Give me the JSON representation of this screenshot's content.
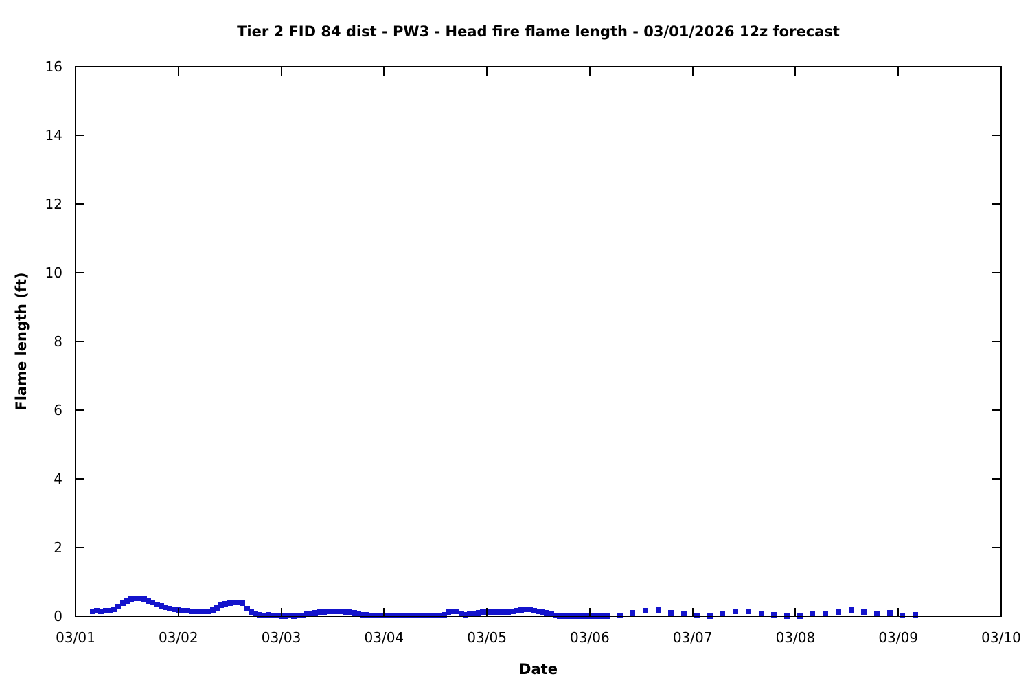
{
  "chart_data": {
    "type": "scatter",
    "title": "Tier 2 FID 84 dist - PW3 - Head fire flame length - 03/01/2026 12z forecast",
    "xlabel": "Date",
    "ylabel": "Flame length (ft)",
    "x_tick_labels": [
      "03/01",
      "03/02",
      "03/03",
      "03/04",
      "03/05",
      "03/06",
      "03/07",
      "03/08",
      "03/09",
      "03/10"
    ],
    "xlim_hours": [
      0,
      216
    ],
    "x_unit": "hours since 03/01 00:00",
    "y_ticks": [
      0,
      2,
      4,
      6,
      8,
      10,
      12,
      14,
      16
    ],
    "ylim": [
      0,
      16
    ],
    "grid": false,
    "legend_position": "none",
    "marker": "filled-square",
    "marker_size_px": 8,
    "marker_color": "#1414cc",
    "axis_color": "#000000",
    "series": [
      {
        "name": "Head fire flame length",
        "cadence": "hourly through 03/06 04:00, 3-hourly afterward",
        "points": [
          [
            4,
            0.15
          ],
          [
            5,
            0.16
          ],
          [
            6,
            0.15
          ],
          [
            7,
            0.16
          ],
          [
            8,
            0.16
          ],
          [
            9,
            0.2
          ],
          [
            10,
            0.28
          ],
          [
            11,
            0.38
          ],
          [
            12,
            0.45
          ],
          [
            13,
            0.5
          ],
          [
            14,
            0.52
          ],
          [
            15,
            0.52
          ],
          [
            16,
            0.5
          ],
          [
            17,
            0.45
          ],
          [
            18,
            0.4
          ],
          [
            19,
            0.35
          ],
          [
            20,
            0.3
          ],
          [
            21,
            0.26
          ],
          [
            22,
            0.22
          ],
          [
            23,
            0.2
          ],
          [
            24,
            0.18
          ],
          [
            25,
            0.17
          ],
          [
            26,
            0.16
          ],
          [
            27,
            0.15
          ],
          [
            28,
            0.15
          ],
          [
            29,
            0.14
          ],
          [
            30,
            0.14
          ],
          [
            31,
            0.15
          ],
          [
            32,
            0.18
          ],
          [
            33,
            0.25
          ],
          [
            34,
            0.32
          ],
          [
            35,
            0.36
          ],
          [
            36,
            0.39
          ],
          [
            37,
            0.4
          ],
          [
            38,
            0.4
          ],
          [
            39,
            0.38
          ],
          [
            40,
            0.22
          ],
          [
            41,
            0.12
          ],
          [
            42,
            0.07
          ],
          [
            43,
            0.04
          ],
          [
            44,
            0.03
          ],
          [
            45,
            0.04
          ],
          [
            46,
            0.03
          ],
          [
            47,
            0.02
          ],
          [
            48,
            0
          ],
          [
            49,
            0
          ],
          [
            50,
            0.02
          ],
          [
            51,
            0
          ],
          [
            52,
            0.03
          ],
          [
            53,
            0.02
          ],
          [
            54,
            0.06
          ],
          [
            55,
            0.08
          ],
          [
            56,
            0.1
          ],
          [
            57,
            0.12
          ],
          [
            58,
            0.13
          ],
          [
            59,
            0.14
          ],
          [
            60,
            0.15
          ],
          [
            61,
            0.15
          ],
          [
            62,
            0.14
          ],
          [
            63,
            0.13
          ],
          [
            64,
            0.12
          ],
          [
            65,
            0.1
          ],
          [
            66,
            0.07
          ],
          [
            67,
            0.05
          ],
          [
            68,
            0.04
          ],
          [
            69,
            0.03
          ],
          [
            70,
            0.03
          ],
          [
            71,
            0.03
          ],
          [
            72,
            0.03
          ],
          [
            73,
            0.02
          ],
          [
            74,
            0.03
          ],
          [
            75,
            0.03
          ],
          [
            76,
            0.02
          ],
          [
            77,
            0.03
          ],
          [
            78,
            0.03
          ],
          [
            79,
            0.03
          ],
          [
            80,
            0.02
          ],
          [
            81,
            0.03
          ],
          [
            82,
            0.03
          ],
          [
            83,
            0.02
          ],
          [
            84,
            0.03
          ],
          [
            85,
            0.03
          ],
          [
            86,
            0.04
          ],
          [
            87,
            0.13
          ],
          [
            88,
            0.15
          ],
          [
            89,
            0.14
          ],
          [
            90,
            0.07
          ],
          [
            91,
            0.05
          ],
          [
            92,
            0.06
          ],
          [
            93,
            0.08
          ],
          [
            94,
            0.1
          ],
          [
            95,
            0.12
          ],
          [
            96,
            0.13
          ],
          [
            97,
            0.12
          ],
          [
            98,
            0.13
          ],
          [
            99,
            0.13
          ],
          [
            100,
            0.12
          ],
          [
            101,
            0.13
          ],
          [
            102,
            0.14
          ],
          [
            103,
            0.16
          ],
          [
            104,
            0.18
          ],
          [
            105,
            0.2
          ],
          [
            106,
            0.2
          ],
          [
            107,
            0.17
          ],
          [
            108,
            0.15
          ],
          [
            109,
            0.13
          ],
          [
            110,
            0.1
          ],
          [
            111,
            0.08
          ],
          [
            112,
            0.02
          ],
          [
            113,
            0
          ],
          [
            114,
            0
          ],
          [
            115,
            0
          ],
          [
            116,
            0
          ],
          [
            117,
            0
          ],
          [
            118,
            0
          ],
          [
            119,
            0
          ],
          [
            120,
            0
          ],
          [
            121,
            0
          ],
          [
            122,
            0
          ],
          [
            123,
            0
          ],
          [
            124,
            0
          ],
          [
            127,
            0.02
          ],
          [
            130,
            0.1
          ],
          [
            133,
            0.16
          ],
          [
            136,
            0.18
          ],
          [
            139,
            0.11
          ],
          [
            142,
            0.07
          ],
          [
            145,
            0.02
          ],
          [
            148,
            0
          ],
          [
            151,
            0.08
          ],
          [
            154,
            0.15
          ],
          [
            157,
            0.15
          ],
          [
            160,
            0.09
          ],
          [
            163,
            0.05
          ],
          [
            166,
            0.01
          ],
          [
            169,
            0
          ],
          [
            172,
            0.06
          ],
          [
            175,
            0.08
          ],
          [
            178,
            0.12
          ],
          [
            181,
            0.18
          ],
          [
            184,
            0.12
          ],
          [
            187,
            0.08
          ],
          [
            190,
            0.11
          ],
          [
            193,
            0.03
          ],
          [
            196,
            0.05
          ]
        ]
      }
    ]
  }
}
